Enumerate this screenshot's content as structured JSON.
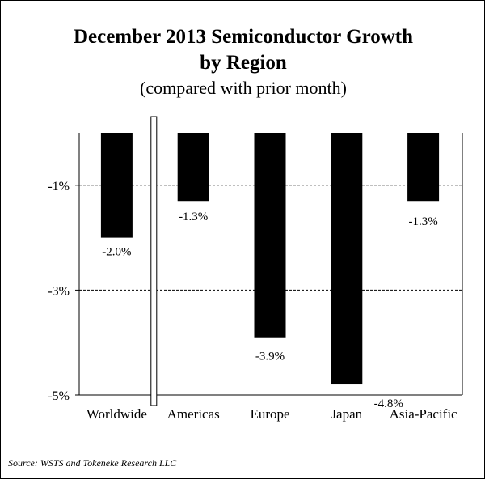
{
  "chart_data": {
    "type": "bar",
    "title_line1": "December 2013 Semiconductor Growth",
    "title_line2": "by Region",
    "subtitle": "(compared with prior month)",
    "categories": [
      "Worldwide",
      "Americas",
      "Europe",
      "Japan",
      "Asia-Pacific"
    ],
    "values": [
      -2.0,
      -1.3,
      -3.9,
      -4.8,
      -1.3
    ],
    "data_labels": [
      "-2.0%",
      "-1.3%",
      "-3.9%",
      "-4.8%",
      "-1.3%"
    ],
    "ylim": [
      -5,
      0
    ],
    "yticks": [
      -1,
      -3,
      -5
    ],
    "ytick_labels": [
      "-1%",
      "-3%",
      "-5%"
    ],
    "grid": "dashed at -1% and -3%",
    "bar_color": "#000000",
    "source": "Source: WSTS and Tokeneke Research LLC"
  }
}
